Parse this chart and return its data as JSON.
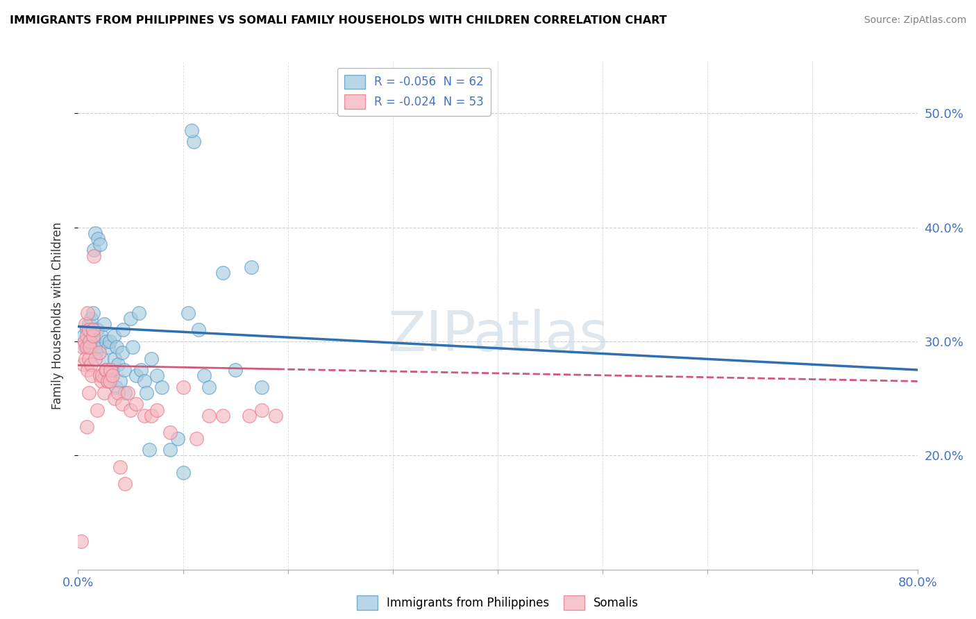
{
  "title": "IMMIGRANTS FROM PHILIPPINES VS SOMALI FAMILY HOUSEHOLDS WITH CHILDREN CORRELATION CHART",
  "source": "Source: ZipAtlas.com",
  "ylabel": "Family Households with Children",
  "ytick_values": [
    0.2,
    0.3,
    0.4,
    0.5
  ],
  "xmin": 0.0,
  "xmax": 0.8,
  "ymin": 0.1,
  "ymax": 0.545,
  "legend_entry1": "R = -0.056  N = 62",
  "legend_entry2": "R = -0.024  N = 53",
  "legend_label1": "Immigrants from Philippines",
  "legend_label2": "Somalis",
  "blue_color": "#a8cce0",
  "pink_color": "#f4b8c1",
  "blue_edge_color": "#5b9dc9",
  "pink_edge_color": "#e87a8a",
  "blue_line_color": "#3070b0",
  "pink_line_color": "#d05878",
  "watermark": "ZIPatlas",
  "blue_scatter": [
    [
      0.005,
      0.305
    ],
    [
      0.007,
      0.295
    ],
    [
      0.008,
      0.31
    ],
    [
      0.01,
      0.315
    ],
    [
      0.01,
      0.295
    ],
    [
      0.01,
      0.3
    ],
    [
      0.012,
      0.32
    ],
    [
      0.012,
      0.305
    ],
    [
      0.013,
      0.295
    ],
    [
      0.013,
      0.31
    ],
    [
      0.014,
      0.325
    ],
    [
      0.015,
      0.38
    ],
    [
      0.015,
      0.3
    ],
    [
      0.016,
      0.395
    ],
    [
      0.017,
      0.29
    ],
    [
      0.018,
      0.31
    ],
    [
      0.019,
      0.39
    ],
    [
      0.02,
      0.295
    ],
    [
      0.021,
      0.385
    ],
    [
      0.022,
      0.305
    ],
    [
      0.023,
      0.285
    ],
    [
      0.025,
      0.315
    ],
    [
      0.027,
      0.3
    ],
    [
      0.028,
      0.265
    ],
    [
      0.029,
      0.295
    ],
    [
      0.03,
      0.3
    ],
    [
      0.032,
      0.27
    ],
    [
      0.033,
      0.275
    ],
    [
      0.034,
      0.305
    ],
    [
      0.035,
      0.285
    ],
    [
      0.036,
      0.26
    ],
    [
      0.037,
      0.295
    ],
    [
      0.038,
      0.28
    ],
    [
      0.04,
      0.265
    ],
    [
      0.042,
      0.29
    ],
    [
      0.043,
      0.31
    ],
    [
      0.044,
      0.275
    ],
    [
      0.045,
      0.255
    ],
    [
      0.05,
      0.32
    ],
    [
      0.052,
      0.295
    ],
    [
      0.055,
      0.27
    ],
    [
      0.058,
      0.325
    ],
    [
      0.06,
      0.275
    ],
    [
      0.063,
      0.265
    ],
    [
      0.065,
      0.255
    ],
    [
      0.068,
      0.205
    ],
    [
      0.07,
      0.285
    ],
    [
      0.075,
      0.27
    ],
    [
      0.08,
      0.26
    ],
    [
      0.088,
      0.205
    ],
    [
      0.095,
      0.215
    ],
    [
      0.1,
      0.185
    ],
    [
      0.105,
      0.325
    ],
    [
      0.115,
      0.31
    ],
    [
      0.12,
      0.27
    ],
    [
      0.125,
      0.26
    ],
    [
      0.138,
      0.36
    ],
    [
      0.15,
      0.275
    ],
    [
      0.165,
      0.365
    ],
    [
      0.11,
      0.475
    ],
    [
      0.175,
      0.26
    ],
    [
      0.108,
      0.485
    ]
  ],
  "pink_scatter": [
    [
      0.003,
      0.125
    ],
    [
      0.004,
      0.295
    ],
    [
      0.005,
      0.28
    ],
    [
      0.006,
      0.3
    ],
    [
      0.007,
      0.315
    ],
    [
      0.007,
      0.285
    ],
    [
      0.008,
      0.295
    ],
    [
      0.008,
      0.305
    ],
    [
      0.009,
      0.325
    ],
    [
      0.009,
      0.275
    ],
    [
      0.01,
      0.31
    ],
    [
      0.01,
      0.255
    ],
    [
      0.01,
      0.285
    ],
    [
      0.011,
      0.3
    ],
    [
      0.011,
      0.295
    ],
    [
      0.012,
      0.28
    ],
    [
      0.013,
      0.27
    ],
    [
      0.014,
      0.305
    ],
    [
      0.014,
      0.31
    ],
    [
      0.015,
      0.375
    ],
    [
      0.016,
      0.285
    ],
    [
      0.018,
      0.24
    ],
    [
      0.02,
      0.29
    ],
    [
      0.021,
      0.27
    ],
    [
      0.022,
      0.265
    ],
    [
      0.023,
      0.27
    ],
    [
      0.025,
      0.255
    ],
    [
      0.026,
      0.275
    ],
    [
      0.027,
      0.275
    ],
    [
      0.028,
      0.265
    ],
    [
      0.03,
      0.265
    ],
    [
      0.031,
      0.275
    ],
    [
      0.033,
      0.27
    ],
    [
      0.035,
      0.25
    ],
    [
      0.038,
      0.255
    ],
    [
      0.04,
      0.19
    ],
    [
      0.042,
      0.245
    ],
    [
      0.045,
      0.175
    ],
    [
      0.047,
      0.255
    ],
    [
      0.05,
      0.24
    ],
    [
      0.055,
      0.245
    ],
    [
      0.063,
      0.235
    ],
    [
      0.07,
      0.235
    ],
    [
      0.075,
      0.24
    ],
    [
      0.088,
      0.22
    ],
    [
      0.1,
      0.26
    ],
    [
      0.113,
      0.215
    ],
    [
      0.125,
      0.235
    ],
    [
      0.138,
      0.235
    ],
    [
      0.163,
      0.235
    ],
    [
      0.175,
      0.24
    ],
    [
      0.188,
      0.235
    ],
    [
      0.008,
      0.225
    ]
  ],
  "blue_line_x0": 0.0,
  "blue_line_y0": 0.313,
  "blue_line_x1": 0.8,
  "blue_line_y1": 0.275,
  "pink_line_x0": 0.0,
  "pink_line_y0": 0.279,
  "pink_line_x1": 0.8,
  "pink_line_y1": 0.265
}
